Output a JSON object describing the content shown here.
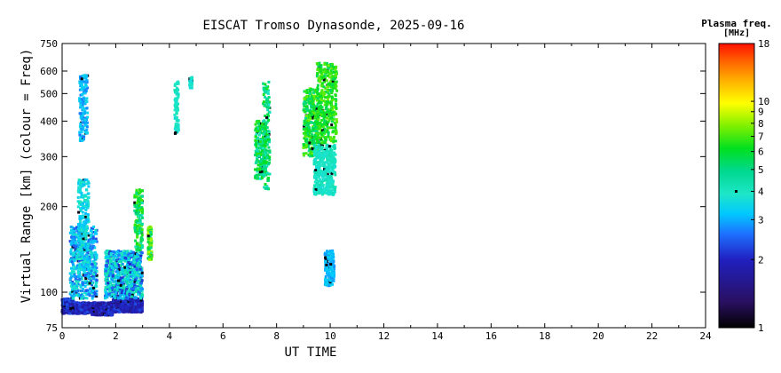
{
  "chart_data": {
    "type": "scatter",
    "title": "EISCAT Tromso Dynasonde, 2025-09-16",
    "xlabel": "UT TIME",
    "ylabel": "Virtual Range [km] (colour = Freq)",
    "x_scale": "linear",
    "y_scale": "log",
    "xlim": [
      0,
      24
    ],
    "ylim": [
      75,
      750
    ],
    "x_ticks": [
      0,
      2,
      4,
      6,
      8,
      10,
      12,
      14,
      16,
      18,
      20,
      22,
      24
    ],
    "y_ticks": [
      75,
      100,
      200,
      300,
      400,
      500,
      600,
      750
    ],
    "grid": false,
    "colorbar": {
      "title_line1": "Plasma freq.",
      "title_line2": "[MHz]",
      "scale": "log",
      "range": [
        1,
        18
      ],
      "ticks": [
        1,
        2,
        3,
        4,
        5,
        6,
        7,
        8,
        9,
        10,
        18
      ],
      "tick_labels": [
        "1",
        "2",
        "3",
        "",
        "5",
        "6",
        "7",
        "8",
        "9",
        "10",
        "18"
      ],
      "marker_value": 4,
      "marker_label": "4"
    },
    "clusters": [
      {
        "t": [
          0.0,
          0.45
        ],
        "r": [
          84,
          95
        ],
        "f": [
          1.6,
          2.4
        ]
      },
      {
        "t": [
          0.5,
          1.1
        ],
        "r": [
          84,
          92
        ],
        "f": [
          1.7,
          2.3
        ]
      },
      {
        "t": [
          1.1,
          1.9
        ],
        "r": [
          83,
          92
        ],
        "f": [
          1.5,
          2.3
        ]
      },
      {
        "t": [
          1.9,
          3.0
        ],
        "r": [
          85,
          95
        ],
        "f": [
          1.6,
          2.3
        ]
      },
      {
        "t": [
          0.3,
          1.3
        ],
        "r": [
          95,
          170
        ],
        "f": [
          2.2,
          3.8
        ]
      },
      {
        "t": [
          0.6,
          1.0
        ],
        "r": [
          120,
          250
        ],
        "f": [
          2.8,
          3.8
        ]
      },
      {
        "t": [
          1.6,
          3.0
        ],
        "r": [
          95,
          140
        ],
        "f": [
          2.0,
          4.2
        ]
      },
      {
        "t": [
          2.7,
          3.0
        ],
        "r": [
          140,
          230
        ],
        "f": [
          3.5,
          6.5
        ]
      },
      {
        "t": [
          3.2,
          3.35
        ],
        "r": [
          130,
          170
        ],
        "f": [
          4.0,
          8.0
        ]
      },
      {
        "t": [
          0.65,
          0.95
        ],
        "r": [
          340,
          580
        ],
        "f": [
          2.5,
          3.3
        ]
      },
      {
        "t": [
          4.2,
          4.35
        ],
        "r": [
          360,
          550
        ],
        "f": [
          3.3,
          3.9
        ]
      },
      {
        "t": [
          4.75,
          4.85
        ],
        "r": [
          520,
          570
        ],
        "f": [
          3.3,
          3.9
        ]
      },
      {
        "t": [
          7.2,
          7.6
        ],
        "r": [
          250,
          400
        ],
        "f": [
          3.5,
          6.0
        ]
      },
      {
        "t": [
          7.5,
          7.75
        ],
        "r": [
          230,
          550
        ],
        "f": [
          3.6,
          5.8
        ]
      },
      {
        "t": [
          9.0,
          9.55
        ],
        "r": [
          300,
          520
        ],
        "f": [
          4.3,
          6.8
        ]
      },
      {
        "t": [
          9.5,
          10.25
        ],
        "r": [
          330,
          640
        ],
        "f": [
          4.8,
          6.8
        ]
      },
      {
        "t": [
          9.4,
          10.2
        ],
        "r": [
          220,
          330
        ],
        "f": [
          3.4,
          4.0
        ]
      },
      {
        "t": [
          9.8,
          10.15
        ],
        "r": [
          105,
          140
        ],
        "f": [
          2.6,
          3.2
        ]
      }
    ]
  }
}
